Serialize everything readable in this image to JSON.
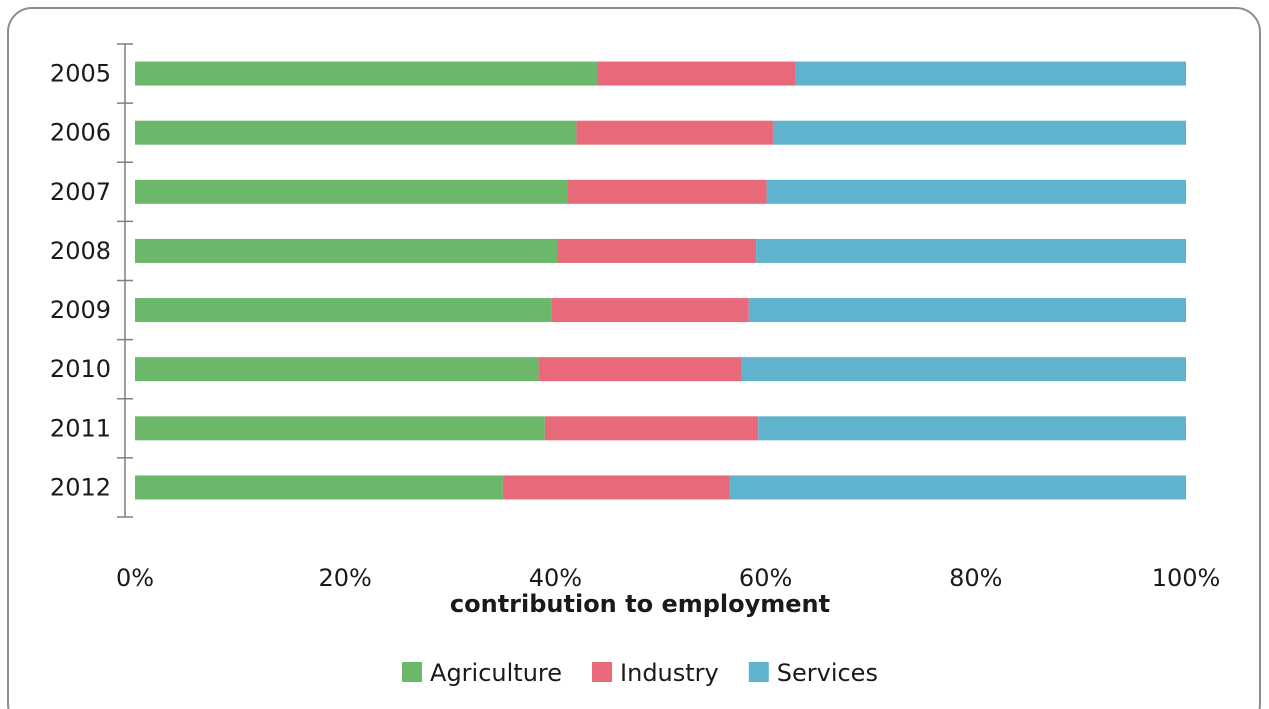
{
  "chart_data": {
    "type": "bar",
    "orientation": "horizontal",
    "stacking": "percent",
    "categories": [
      "2005",
      "2006",
      "2007",
      "2008",
      "2009",
      "2010",
      "2011",
      "2012"
    ],
    "series": [
      {
        "name": "Agriculture",
        "color": "#6bb86b",
        "values": [
          44,
          42,
          41.2,
          40.2,
          39.6,
          38.4,
          39,
          35
        ]
      },
      {
        "name": "Industry",
        "color": "#e8697a",
        "values": [
          18.8,
          18.7,
          18.9,
          18.9,
          18.8,
          19.3,
          20.3,
          21.6
        ]
      },
      {
        "name": "Services",
        "color": "#5fb3cc",
        "values": [
          37.2,
          39.3,
          39.9,
          40.9,
          41.6,
          42.3,
          40.7,
          43.4
        ]
      }
    ],
    "xticks": [
      "0%",
      "20%",
      "40%",
      "60%",
      "80%",
      "100%"
    ],
    "xlim": [
      0,
      100
    ],
    "xlabel": "contribution to employment",
    "ylabel": "",
    "title": "",
    "grid": false,
    "legend": "bottom"
  }
}
